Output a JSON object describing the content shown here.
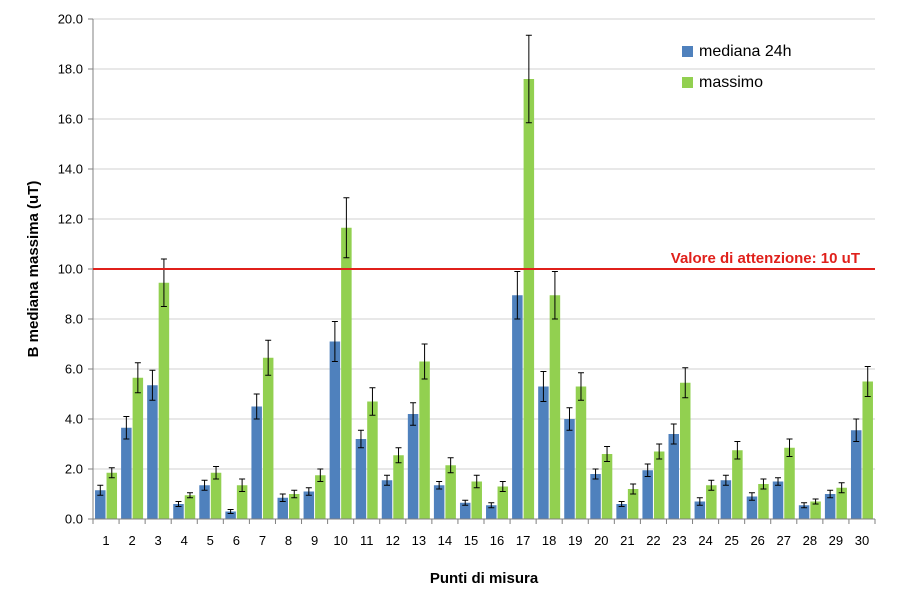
{
  "chart_data": {
    "type": "bar",
    "title": "",
    "xlabel": "Punti di misura",
    "ylabel": "B mediana massima (uT)",
    "ylim": [
      0,
      20
    ],
    "yticks": [
      "0.0",
      "2.0",
      "4.0",
      "6.0",
      "8.0",
      "10.0",
      "12.0",
      "14.0",
      "16.0",
      "18.0",
      "20.0"
    ],
    "grid": true,
    "legend_position": "top-right",
    "categories": [
      "1",
      "2",
      "3",
      "4",
      "5",
      "6",
      "7",
      "8",
      "9",
      "10",
      "11",
      "12",
      "13",
      "14",
      "15",
      "16",
      "17",
      "18",
      "19",
      "20",
      "21",
      "22",
      "23",
      "24",
      "25",
      "26",
      "27",
      "28",
      "29",
      "30"
    ],
    "series": [
      {
        "name": "mediana 24h",
        "color": "#4f81bd",
        "values": [
          1.15,
          3.65,
          5.35,
          0.6,
          1.35,
          0.3,
          4.5,
          0.85,
          1.1,
          7.1,
          3.2,
          1.55,
          4.2,
          1.35,
          0.65,
          0.55,
          8.95,
          5.3,
          4.0,
          1.8,
          0.6,
          1.95,
          3.4,
          0.7,
          1.55,
          0.9,
          1.5,
          0.55,
          1.0,
          3.55
        ],
        "errors": [
          0.2,
          0.45,
          0.6,
          0.1,
          0.2,
          0.08,
          0.5,
          0.15,
          0.15,
          0.8,
          0.35,
          0.2,
          0.45,
          0.15,
          0.1,
          0.1,
          0.95,
          0.6,
          0.45,
          0.2,
          0.1,
          0.25,
          0.4,
          0.15,
          0.2,
          0.15,
          0.15,
          0.1,
          0.15,
          0.45
        ]
      },
      {
        "name": "massimo",
        "color": "#92d050",
        "values": [
          1.85,
          5.65,
          9.45,
          0.95,
          1.85,
          1.35,
          6.45,
          1.0,
          1.75,
          11.65,
          4.7,
          2.55,
          6.3,
          2.15,
          1.5,
          1.3,
          17.6,
          8.95,
          5.3,
          2.6,
          1.2,
          2.7,
          5.45,
          1.35,
          2.75,
          1.4,
          2.85,
          0.7,
          1.25,
          5.5
        ],
        "errors": [
          0.2,
          0.6,
          0.95,
          0.1,
          0.25,
          0.25,
          0.7,
          0.15,
          0.25,
          1.2,
          0.55,
          0.3,
          0.7,
          0.3,
          0.25,
          0.2,
          1.75,
          0.95,
          0.55,
          0.3,
          0.2,
          0.3,
          0.6,
          0.2,
          0.35,
          0.2,
          0.35,
          0.1,
          0.2,
          0.6
        ]
      }
    ],
    "reference_line": {
      "value": 10,
      "label": "Valore di attenzione: 10 uT",
      "color": "#e0201b"
    }
  }
}
